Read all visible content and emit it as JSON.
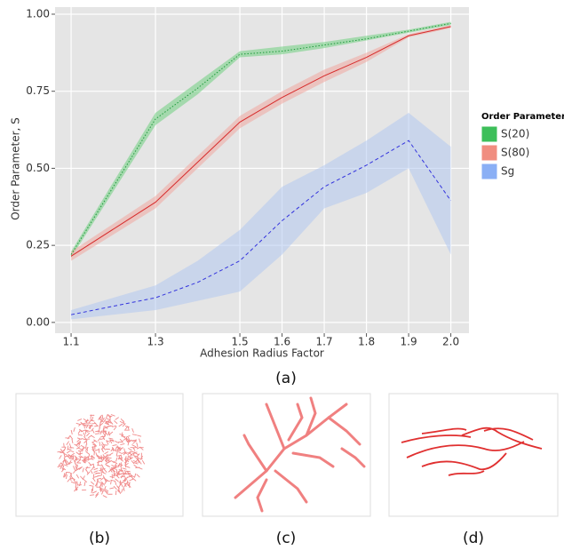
{
  "chart_data": {
    "type": "line",
    "xlabel": "Adhesion Radius Factor",
    "ylabel": "Order Parameter, S",
    "legend_title": "Order Parameter",
    "legend": "right",
    "grid": true,
    "x": [
      1.1,
      1.3,
      1.4,
      1.5,
      1.6,
      1.7,
      1.8,
      1.9,
      2.0
    ],
    "xlim": [
      1.062,
      2.043
    ],
    "xticks": [
      1.1,
      1.3,
      1.5,
      1.6,
      1.7,
      1.8,
      1.9,
      {
        "value": 2,
        "label": "2.0"
      }
    ],
    "ylim": [
      -0.035,
      1.023
    ],
    "yticks": [
      {
        "value": 0,
        "label": "0.00"
      },
      {
        "value": 0.25,
        "label": "0.25"
      },
      {
        "value": 0.5,
        "label": "0.50"
      },
      {
        "value": 0.75,
        "label": "0.75"
      },
      {
        "value": 1,
        "label": "1.00"
      }
    ],
    "series": [
      {
        "name": "S(20)",
        "color": "#1f9a3c",
        "band_color": "#6fcf7f",
        "key_color": "#3dbf5a",
        "dash": "dotted",
        "values": [
          0.22,
          0.66,
          0.76,
          0.87,
          0.88,
          0.9,
          0.92,
          0.945,
          0.97
        ],
        "lower": [
          0.21,
          0.64,
          0.74,
          0.86,
          0.87,
          0.89,
          0.915,
          0.94,
          0.965
        ],
        "upper": [
          0.23,
          0.68,
          0.78,
          0.88,
          0.895,
          0.91,
          0.93,
          0.95,
          0.975
        ]
      },
      {
        "name": "S(80)",
        "color": "#d62b2b",
        "band_color": "#f0a8a0",
        "key_color": "#f08d80",
        "dash": "solid",
        "values": [
          0.215,
          0.39,
          0.52,
          0.65,
          0.73,
          0.8,
          0.86,
          0.93,
          0.96
        ],
        "lower": [
          0.2,
          0.37,
          0.5,
          0.63,
          0.71,
          0.78,
          0.845,
          0.925,
          0.955
        ],
        "upper": [
          0.23,
          0.41,
          0.54,
          0.67,
          0.75,
          0.82,
          0.875,
          0.935,
          0.965
        ]
      },
      {
        "name": "Sg",
        "color": "#3333dd",
        "band_color": "#b3c8f0",
        "key_color": "#8aaff5",
        "dash": "dashed",
        "values": [
          0.025,
          0.08,
          0.13,
          0.2,
          0.33,
          0.44,
          0.51,
          0.59,
          0.395
        ],
        "lower": [
          0.01,
          0.04,
          0.07,
          0.1,
          0.22,
          0.37,
          0.42,
          0.5,
          0.22
        ],
        "upper": [
          0.04,
          0.12,
          0.2,
          0.3,
          0.44,
          0.51,
          0.59,
          0.68,
          0.57
        ]
      }
    ]
  },
  "captions": [
    "(a)",
    "(b)",
    "(c)",
    "(d)"
  ]
}
